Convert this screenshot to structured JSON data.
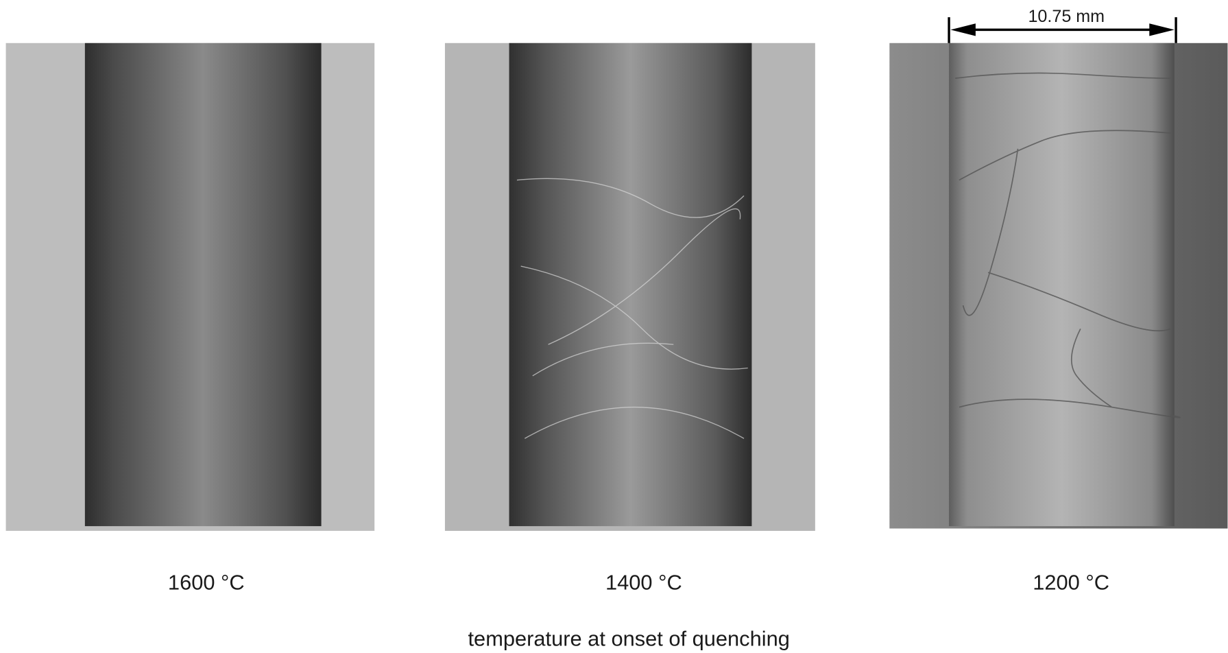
{
  "panels": [
    {
      "label": "1600 °C"
    },
    {
      "label": "1400 °C"
    },
    {
      "label": "1200 °C"
    }
  ],
  "scale_bar": {
    "label": "10.75 mm"
  },
  "caption": "temperature at onset of quenching"
}
